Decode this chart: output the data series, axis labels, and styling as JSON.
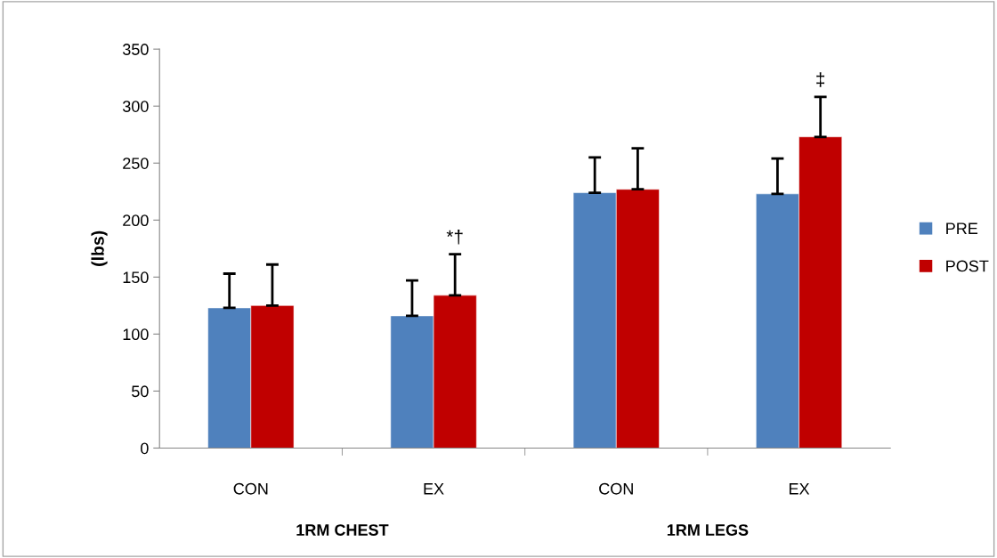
{
  "chart_data": {
    "type": "bar",
    "ylabel": "(lbs)",
    "categories": [
      "CON",
      "EX",
      "CON",
      "EX"
    ],
    "series": [
      {
        "name": "PRE",
        "color": "#4f81bd",
        "values": [
          123,
          116,
          224,
          223
        ],
        "errors": [
          [
            123,
            153
          ],
          [
            116,
            147
          ],
          [
            224,
            255
          ],
          [
            223,
            254
          ]
        ]
      },
      {
        "name": "POST",
        "color": "#c00000",
        "values": [
          125,
          134,
          227,
          273
        ],
        "errors": [
          [
            125,
            161
          ],
          [
            134,
            170
          ],
          [
            227,
            263
          ],
          [
            273,
            308
          ]
        ]
      }
    ],
    "annotations": [
      "*†",
      "‡",
      "1RM CHEST",
      "1RM LEGS"
    ],
    "ylim": [
      0,
      350
    ],
    "yticks": [
      0,
      50,
      100,
      150,
      200,
      250,
      300,
      350
    ],
    "grid": false,
    "legend": "right"
  }
}
